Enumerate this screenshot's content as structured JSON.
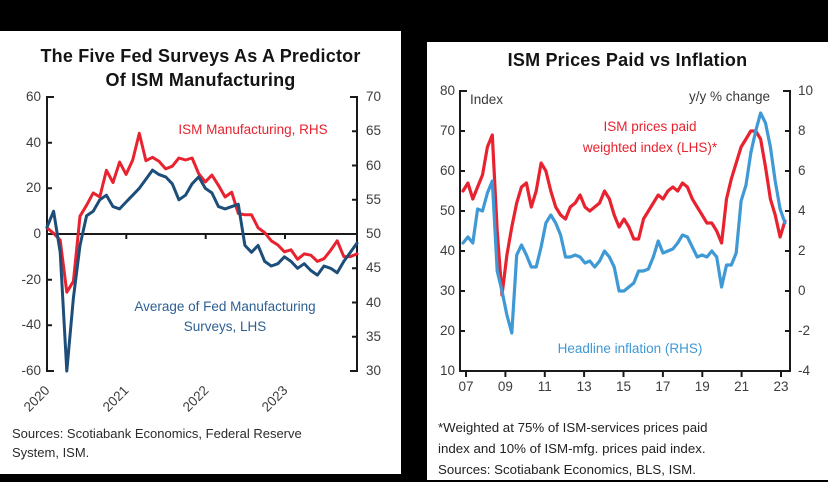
{
  "page": {
    "background_color": "#000000",
    "panel_color": "#ffffff"
  },
  "chart_data": [
    {
      "type": "line",
      "title": "The Five Fed Surveys As A Predictor Of ISM Manufacturing",
      "title_lines": [
        "The Five Fed Surveys As A Predictor",
        "Of ISM Manufacturing"
      ],
      "x_resolution": "monthly",
      "x_range": [
        "2020-01",
        "2023-12"
      ],
      "x_ticklabels": [
        "2020",
        "2021",
        "2022",
        "2023"
      ],
      "left_axis": {
        "range": [
          -60,
          60
        ],
        "ticks": [
          60,
          40,
          20,
          0,
          -20,
          -40,
          -60
        ]
      },
      "right_axis": {
        "range": [
          30,
          70
        ],
        "ticks": [
          70,
          65,
          60,
          55,
          50,
          45,
          40,
          35,
          30
        ]
      },
      "grid": false,
      "legend_position": "in-plot-text",
      "series": [
        {
          "name": "ISM Manufacturing, RHS",
          "axis": "right",
          "color": "#e8232f",
          "values": [
            50.9,
            50.1,
            49.1,
            41.5,
            43.1,
            52.6,
            54.2,
            56.0,
            55.4,
            59.3,
            57.5,
            60.5,
            58.7,
            60.8,
            64.7,
            60.7,
            61.2,
            60.6,
            59.5,
            59.9,
            61.1,
            60.8,
            61.1,
            58.8,
            57.6,
            58.6,
            57.1,
            55.4,
            56.1,
            53.0,
            52.8,
            52.8,
            50.9,
            50.2,
            49.0,
            48.4,
            47.4,
            47.7,
            46.3,
            47.1,
            46.9,
            46.0,
            46.4,
            47.6,
            49.0,
            46.7,
            46.7,
            47.1
          ]
        },
        {
          "name": "Average of Fed Manufacturing Surveys, LHS",
          "axis": "left",
          "color": "#1d4e79",
          "values": [
            3,
            10,
            -8,
            -60,
            -28,
            -5,
            8,
            10,
            15,
            17,
            12,
            11,
            14,
            17,
            20,
            24,
            28,
            26,
            25,
            22,
            15,
            17,
            22,
            25,
            20,
            18,
            12,
            11,
            12,
            13,
            -5,
            -8,
            -5,
            -12,
            -14,
            -13,
            -10,
            -12,
            -15,
            -13,
            -16,
            -18,
            -14,
            -15,
            -17,
            -12,
            -8,
            -4
          ]
        }
      ],
      "annotations": {
        "red_label": "ISM Manufacturing, RHS",
        "blue_label_lines": [
          "Average of Fed Manufacturing",
          "Surveys, LHS"
        ]
      },
      "source_lines": [
        "Sources: Scotiabank Economics, Federal Reserve",
        "System, ISM."
      ]
    },
    {
      "type": "line",
      "title": "ISM Prices Paid vs Inflation",
      "x_resolution": "quarterly",
      "x_range": [
        "2007",
        "2023"
      ],
      "x_ticklabels": [
        "07",
        "09",
        "11",
        "13",
        "15",
        "17",
        "19",
        "21",
        "23"
      ],
      "left_axis": {
        "label": "Index",
        "range": [
          10,
          80
        ],
        "ticks": [
          80,
          70,
          60,
          50,
          40,
          30,
          20,
          10
        ]
      },
      "right_axis": {
        "label": "y/y % change",
        "range": [
          -4,
          10
        ],
        "ticks": [
          10,
          8,
          6,
          4,
          2,
          0,
          -2,
          -4
        ]
      },
      "grid": false,
      "legend_position": "in-plot-text",
      "series": [
        {
          "name": "ISM prices paid weighted index (LHS)*",
          "axis": "left",
          "color": "#e8232f",
          "values": [
            55,
            57,
            53,
            56,
            59,
            66,
            69,
            45,
            29,
            39,
            46,
            52,
            56,
            57,
            51,
            55,
            62,
            60,
            55,
            51,
            49,
            48,
            51,
            52,
            54,
            51,
            50,
            51,
            52,
            55,
            53,
            49,
            46,
            48,
            46,
            43,
            43,
            48,
            50,
            52,
            54,
            53,
            55,
            56,
            55,
            57,
            56,
            53,
            51,
            49,
            47,
            47,
            45,
            42,
            53,
            58,
            62,
            66,
            68,
            70,
            70,
            68,
            61,
            53,
            49,
            43.5,
            47.5
          ]
        },
        {
          "name": "Headline inflation (RHS)",
          "axis": "right",
          "color": "#3f99d5",
          "values": [
            2.4,
            2.7,
            2.4,
            4.1,
            4.0,
            4.9,
            5.5,
            1.0,
            0.0,
            -1.2,
            -2.1,
            1.8,
            2.3,
            1.8,
            1.2,
            1.2,
            2.2,
            3.4,
            3.8,
            3.4,
            2.8,
            1.7,
            1.7,
            1.8,
            1.7,
            1.4,
            1.5,
            1.2,
            1.5,
            2.0,
            1.7,
            1.2,
            0.0,
            0.0,
            0.2,
            0.4,
            1.0,
            1.0,
            1.1,
            1.7,
            2.5,
            1.9,
            2.0,
            2.1,
            2.4,
            2.8,
            2.7,
            2.2,
            1.7,
            1.8,
            1.7,
            2.0,
            1.7,
            0.2,
            1.3,
            1.3,
            1.9,
            4.5,
            5.3,
            6.9,
            8.0,
            8.9,
            8.4,
            7.2,
            5.5,
            4.1,
            3.4
          ]
        }
      ],
      "annotations": {
        "red_label_lines": [
          "ISM prices paid",
          "weighted index (LHS)*"
        ],
        "blue_label": "Headline inflation (RHS)"
      },
      "footnote_lines": [
        "*Weighted at 75% of ISM-services prices paid",
        "index and 10% of ISM-mfg. prices paid index.",
        "Sources: Scotiabank Economics, BLS, ISM."
      ]
    }
  ]
}
